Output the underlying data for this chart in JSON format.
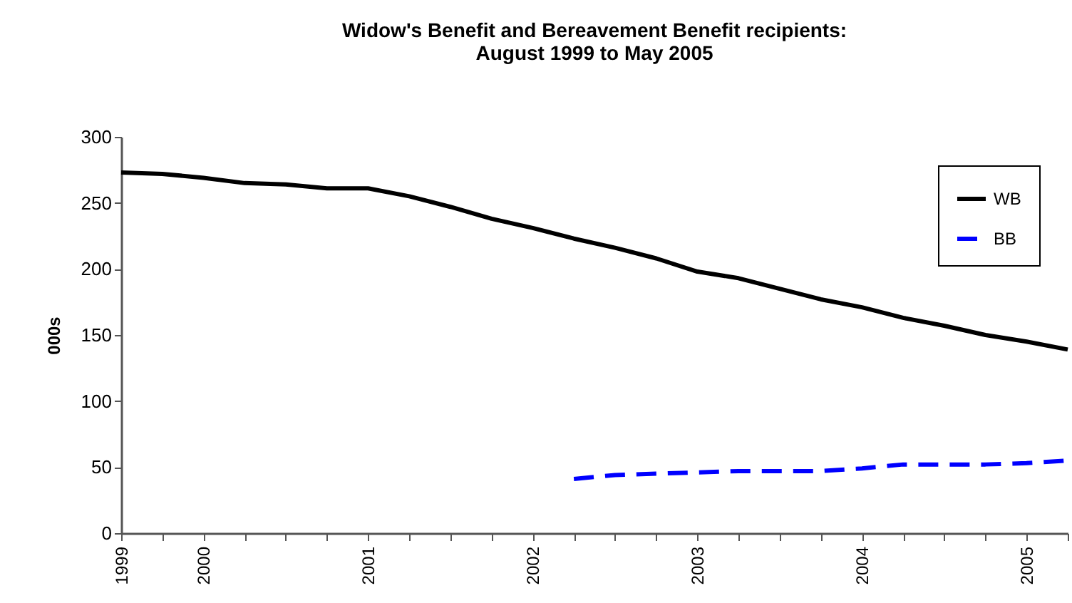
{
  "chart_data": {
    "type": "line",
    "title": "Widow's  Benefit and Bereavement Benefit recipients:\nAugust 1999 to May 2005",
    "ylabel": "000s",
    "categories": [
      "1999",
      null,
      "2000",
      null,
      null,
      null,
      "2001",
      null,
      null,
      null,
      "2002",
      null,
      null,
      null,
      "2003",
      null,
      null,
      null,
      "2004",
      null,
      null,
      null,
      "2005",
      null
    ],
    "series": [
      {
        "name": "WB",
        "color": "#000000",
        "line_style": "solid",
        "values": [
          273,
          272,
          269,
          265,
          264,
          261,
          261,
          255,
          247,
          238,
          231,
          223,
          216,
          208,
          198,
          193,
          185,
          177,
          171,
          163,
          157,
          150,
          145,
          139
        ]
      },
      {
        "name": "BB",
        "color": "#0000ff",
        "line_style": "dashed",
        "values": [
          null,
          null,
          null,
          null,
          null,
          null,
          null,
          null,
          null,
          null,
          null,
          41,
          44,
          45,
          46,
          47,
          47,
          47,
          49,
          52,
          52,
          52,
          53,
          55
        ]
      }
    ],
    "ylim": [
      0,
      300
    ],
    "yticks": [
      0,
      50,
      100,
      150,
      200,
      250,
      300
    ],
    "grid": false,
    "legend": "top right",
    "marker": "none"
  }
}
